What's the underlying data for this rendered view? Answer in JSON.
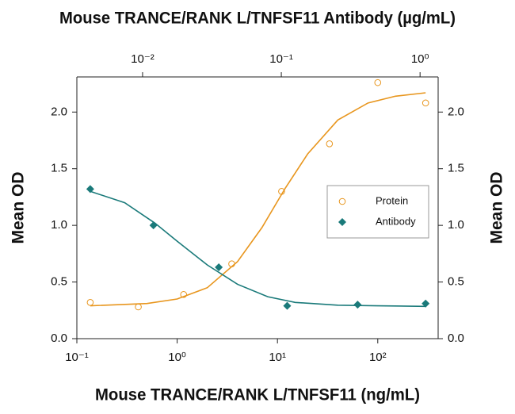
{
  "chart_data": {
    "type": "scatter",
    "title": "Mouse TRANCE/RANK L/TNFSF11 Antibody (µg/mL)",
    "x_label": "Mouse TRANCE/RANK L/TNFSF11 (ng/mL)",
    "y_label": "Mean OD",
    "y2_label": "Mean OD",
    "x_log": true,
    "x2_log": true,
    "xlim": [
      0.1,
      400
    ],
    "xticks": [
      {
        "value": 0.1,
        "label": "10⁻¹"
      },
      {
        "value": 1,
        "label": "10⁰"
      },
      {
        "value": 10,
        "label": "10¹"
      },
      {
        "value": 100,
        "label": "10²"
      }
    ],
    "x2lim": [
      0.00336,
      1.35
    ],
    "x2ticks": [
      {
        "value": 0.01,
        "label": "10⁻²"
      },
      {
        "value": 0.1,
        "label": "10⁻¹"
      },
      {
        "value": 1,
        "label": "10⁰"
      }
    ],
    "ylim": [
      0,
      2.31
    ],
    "yticks": [
      {
        "value": 0,
        "label": "0.0"
      },
      {
        "value": 0.5,
        "label": "0.5"
      },
      {
        "value": 1,
        "label": "1.0"
      },
      {
        "value": 1.5,
        "label": "1.5"
      },
      {
        "value": 2,
        "label": "2.0"
      }
    ],
    "y2lim": [
      0,
      2.31
    ],
    "y2ticks": [
      {
        "value": 0,
        "label": "0.0"
      },
      {
        "value": 0.5,
        "label": "0.5"
      },
      {
        "value": 1,
        "label": "1.0"
      },
      {
        "value": 1.5,
        "label": "1.5"
      },
      {
        "value": 2,
        "label": "2.0"
      }
    ],
    "legend": "right",
    "series": [
      {
        "name": "Protein",
        "color": "#e8961e",
        "marker": "circle",
        "x": [
          0.136,
          0.41,
          1.16,
          3.5,
          11,
          33,
          100,
          300
        ],
        "values": [
          0.32,
          0.28,
          0.39,
          0.66,
          1.3,
          1.72,
          2.26,
          2.08
        ],
        "fit": {
          "x": [
            0.136,
            0.5,
            1,
            2,
            4,
            7,
            12,
            20,
            40,
            80,
            150,
            300
          ],
          "values": [
            0.29,
            0.31,
            0.35,
            0.45,
            0.68,
            0.98,
            1.33,
            1.63,
            1.93,
            2.08,
            2.14,
            2.17
          ]
        }
      },
      {
        "name": "Antibody",
        "color": "#1a7a7a",
        "marker": "diamond",
        "x": [
          0.136,
          0.58,
          2.6,
          12.5,
          63,
          300
        ],
        "values": [
          1.32,
          1.0,
          0.63,
          0.29,
          0.3,
          0.31
        ],
        "fit": {
          "x": [
            0.136,
            0.3,
            0.6,
            1,
            2,
            4,
            8,
            15,
            40,
            100,
            300
          ],
          "values": [
            1.3,
            1.2,
            1.02,
            0.86,
            0.65,
            0.48,
            0.37,
            0.32,
            0.295,
            0.29,
            0.285
          ]
        }
      }
    ]
  }
}
